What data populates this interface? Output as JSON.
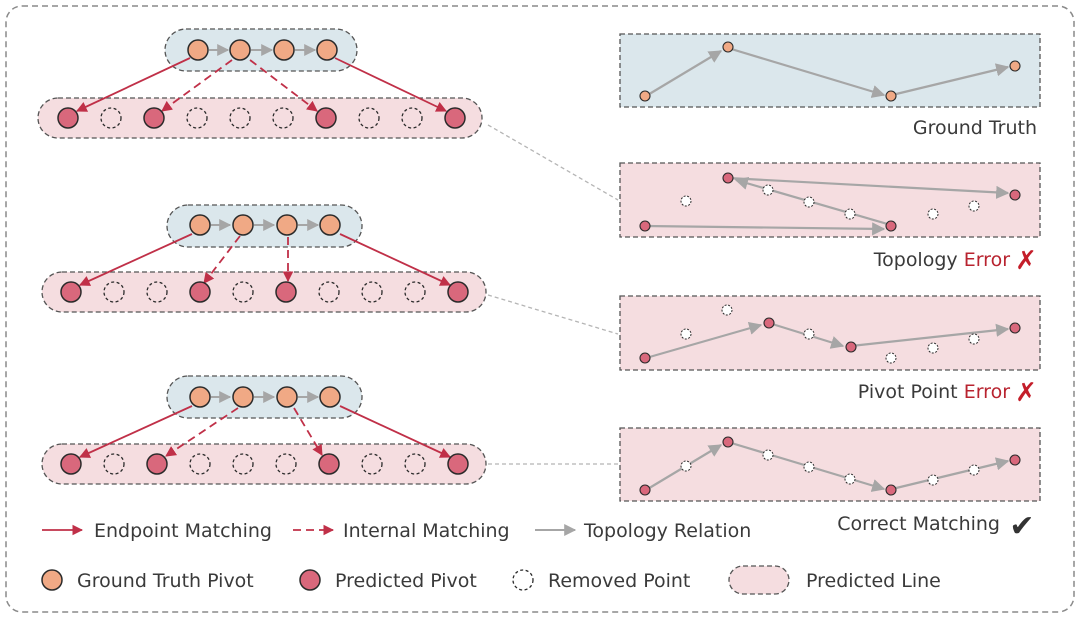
{
  "colors": {
    "gt_fill": "#f0a985",
    "pred_fill": "#d9687c",
    "stroke": "#2b2b2b",
    "match_line": "#c03048",
    "topology_line": "#a6a6a6",
    "gt_box": "#dbe7ec",
    "pred_box": "#f5dde0",
    "error_text": "#b8232f"
  },
  "panels": {
    "ground_truth": "Ground Truth",
    "topology_error": {
      "prefix": "Topology ",
      "error": "Error",
      "mark": "✗"
    },
    "pivot_error": {
      "prefix": "Pivot Point ",
      "error": "Error",
      "mark": "✗"
    },
    "correct": {
      "label": "Correct Matching",
      "mark": "✔"
    }
  },
  "legend": {
    "endpoint": "Endpoint Matching",
    "internal": "Internal Matching",
    "topology": "Topology Relation",
    "gt_pivot": "Ground Truth Pivot",
    "pred_pivot": "Predicted Pivot",
    "removed": "Removed Point",
    "pred_line": "Predicted Line"
  }
}
